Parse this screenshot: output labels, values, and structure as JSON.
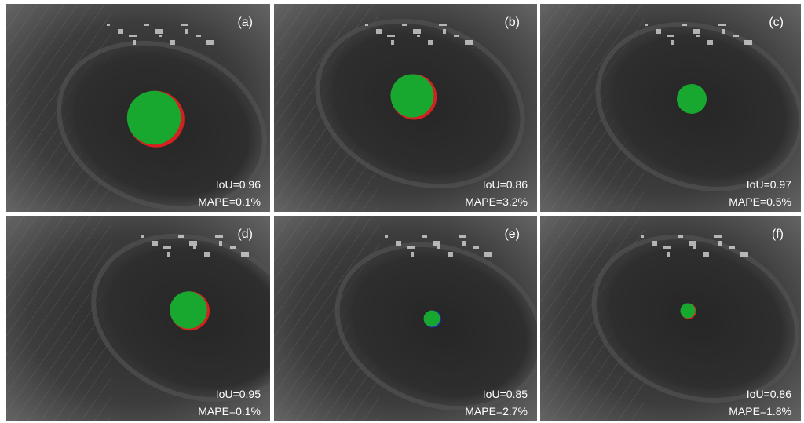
{
  "panels": [
    {
      "label": "(a)",
      "iou": "IoU=0.96",
      "mape": "MAPE=0.1%"
    },
    {
      "label": "(b)",
      "iou": "IoU=0.86",
      "mape": "MAPE=3.2%"
    },
    {
      "label": "(c)",
      "iou": "IoU=0.97",
      "mape": "MAPE=0.5%"
    },
    {
      "label": "(d)",
      "iou": "IoU=0.95",
      "mape": "MAPE=0.1%"
    },
    {
      "label": "(e)",
      "iou": "IoU=0.85",
      "mape": "MAPE=2.7%"
    },
    {
      "label": "(f)",
      "iou": "IoU=0.86",
      "mape": "MAPE=1.8%"
    }
  ]
}
